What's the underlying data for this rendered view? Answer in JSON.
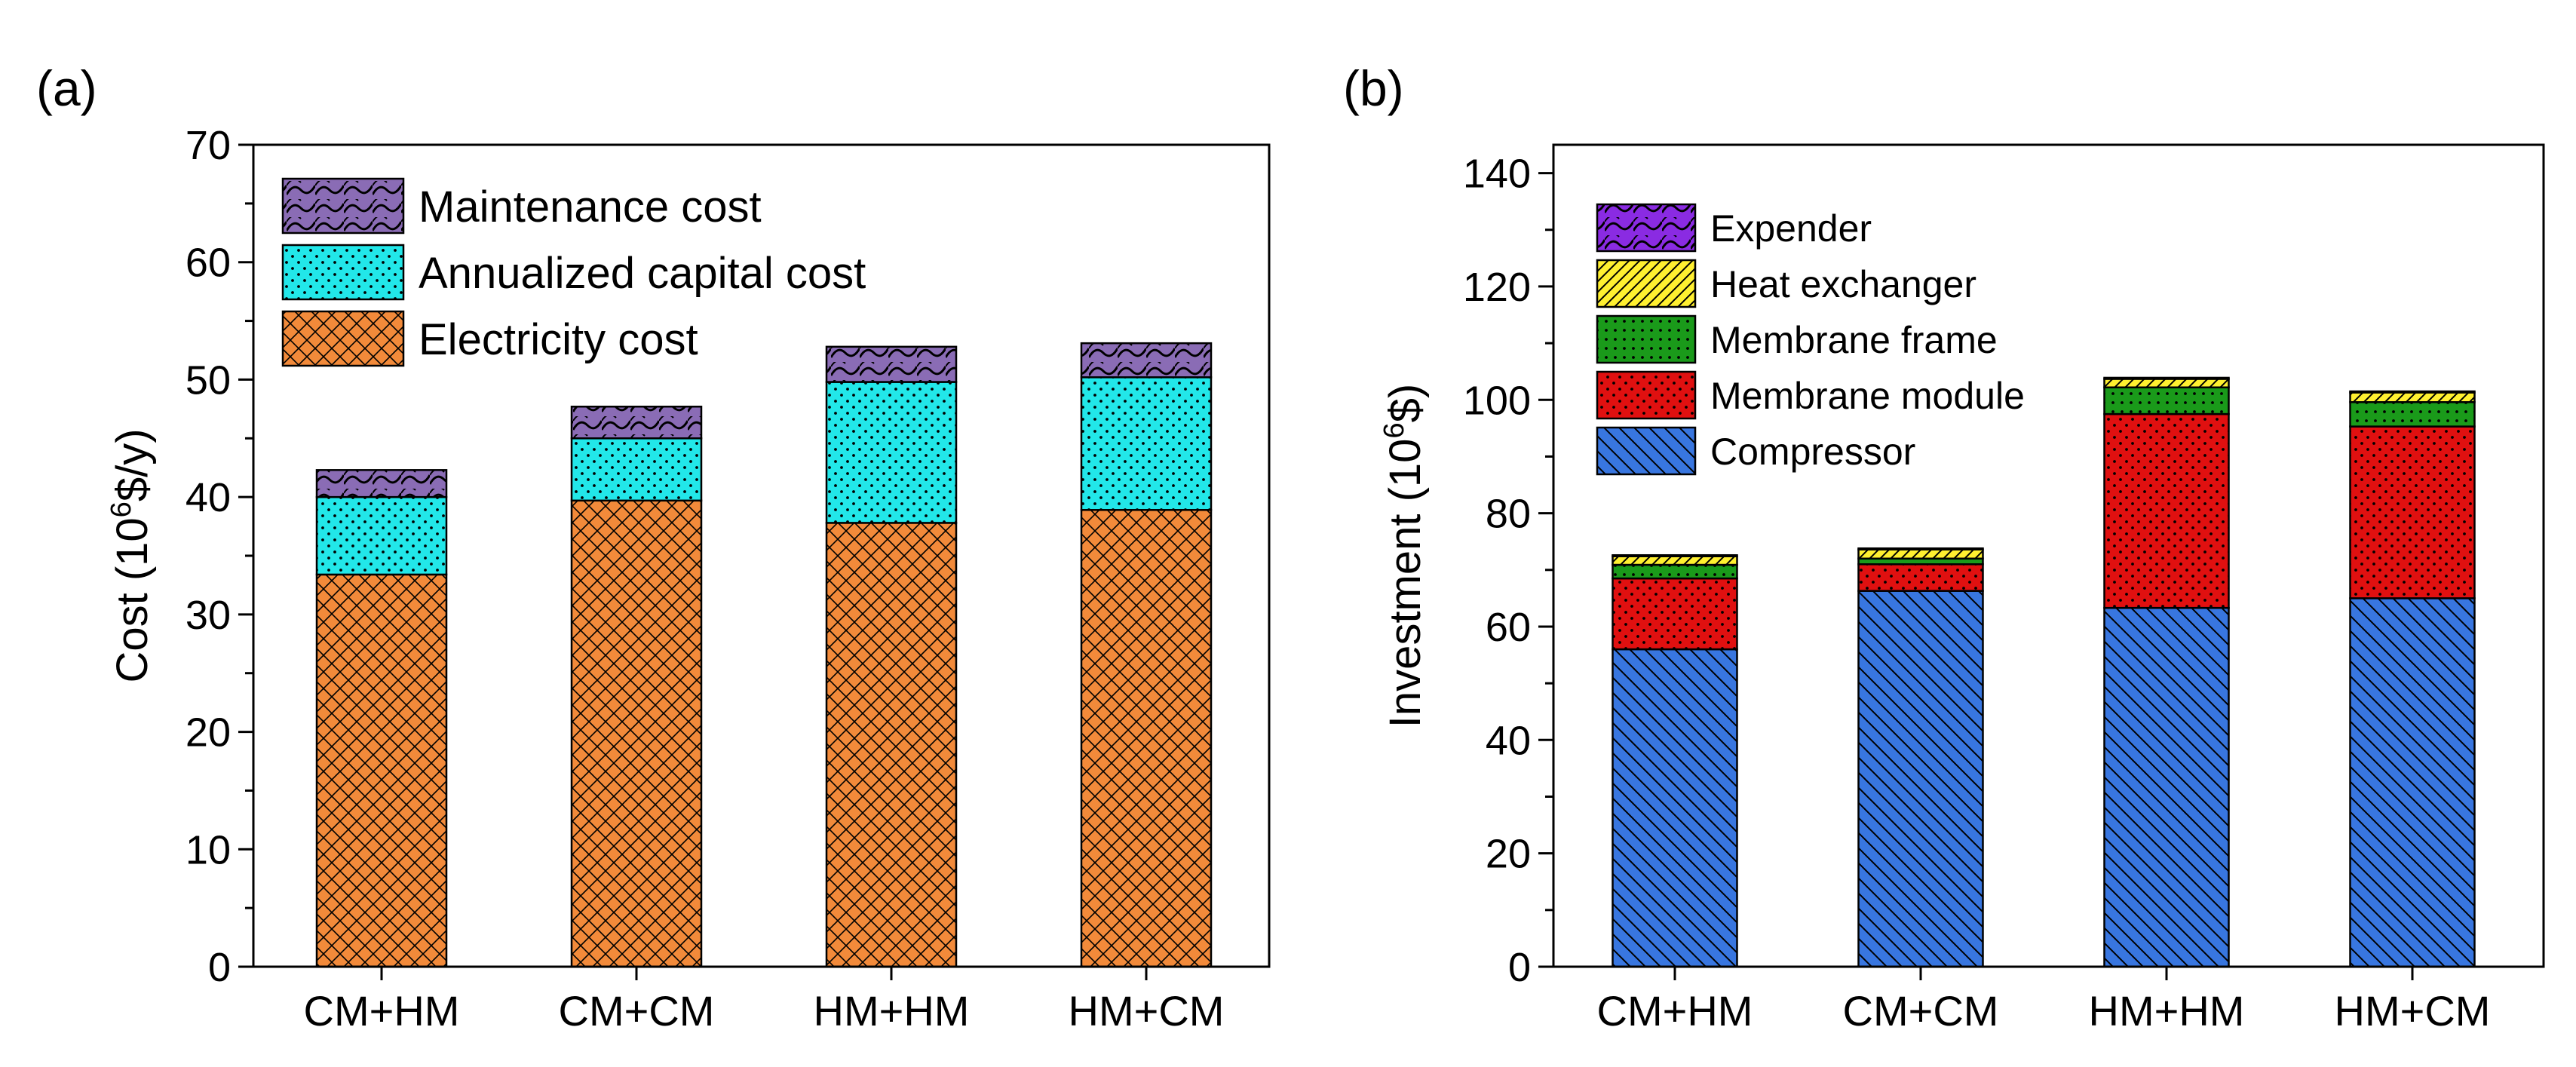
{
  "chart_data": [
    {
      "type": "bar",
      "stacked": true,
      "panel_label": "(a)",
      "title": "",
      "xlabel": "",
      "ylabel_main": "Cost (10",
      "ylabel_sup": "6",
      "ylabel_tail": "$/y)",
      "ylim": [
        0,
        70
      ],
      "yticks": [
        0,
        10,
        20,
        30,
        40,
        50,
        60,
        70
      ],
      "categories": [
        "CM+HM",
        "CM+CM",
        "HM+HM",
        "HM+CM"
      ],
      "legend_position": "top-left",
      "series": [
        {
          "name": "Electricity cost",
          "color": "#F28A3A",
          "pattern": "crosshatch",
          "values": [
            33.4,
            39.7,
            37.8,
            38.9
          ]
        },
        {
          "name": "Annualized capital cost",
          "color": "#22E7E9",
          "pattern": "dots",
          "values": [
            6.6,
            5.3,
            12.0,
            11.3
          ]
        },
        {
          "name": "Maintenance cost",
          "color": "#8A6CB5",
          "pattern": "waves",
          "values": [
            2.3,
            2.7,
            3.0,
            2.9
          ]
        }
      ]
    },
    {
      "type": "bar",
      "stacked": true,
      "panel_label": "(b)",
      "title": "",
      "xlabel": "",
      "ylabel_main": "Investment (10",
      "ylabel_sup": "6",
      "ylabel_tail": "$)",
      "ylim": [
        0,
        145
      ],
      "yticks": [
        0,
        20,
        40,
        60,
        80,
        100,
        120,
        140
      ],
      "categories": [
        "CM+HM",
        "CM+CM",
        "HM+HM",
        "HM+CM"
      ],
      "legend_position": "top-left",
      "series": [
        {
          "name": "Compressor",
          "color": "#3876E0",
          "pattern": "diag-back",
          "values": [
            56.0,
            66.3,
            63.3,
            65.0
          ]
        },
        {
          "name": "Membrane module",
          "color": "#E01010",
          "pattern": "dots",
          "values": [
            12.5,
            4.7,
            34.2,
            30.3
          ]
        },
        {
          "name": "Membrane frame",
          "color": "#1A9A1A",
          "pattern": "dotgrid",
          "values": [
            2.4,
            1.0,
            4.7,
            4.3
          ]
        },
        {
          "name": "Heat exchanger",
          "color": "#FFF030",
          "pattern": "diag-fwd",
          "values": [
            1.5,
            1.6,
            1.5,
            1.7
          ]
        },
        {
          "name": "Expender",
          "color": "#8A2BE2",
          "pattern": "waves",
          "values": [
            0.2,
            0.2,
            0.2,
            0.2
          ]
        }
      ]
    }
  ]
}
